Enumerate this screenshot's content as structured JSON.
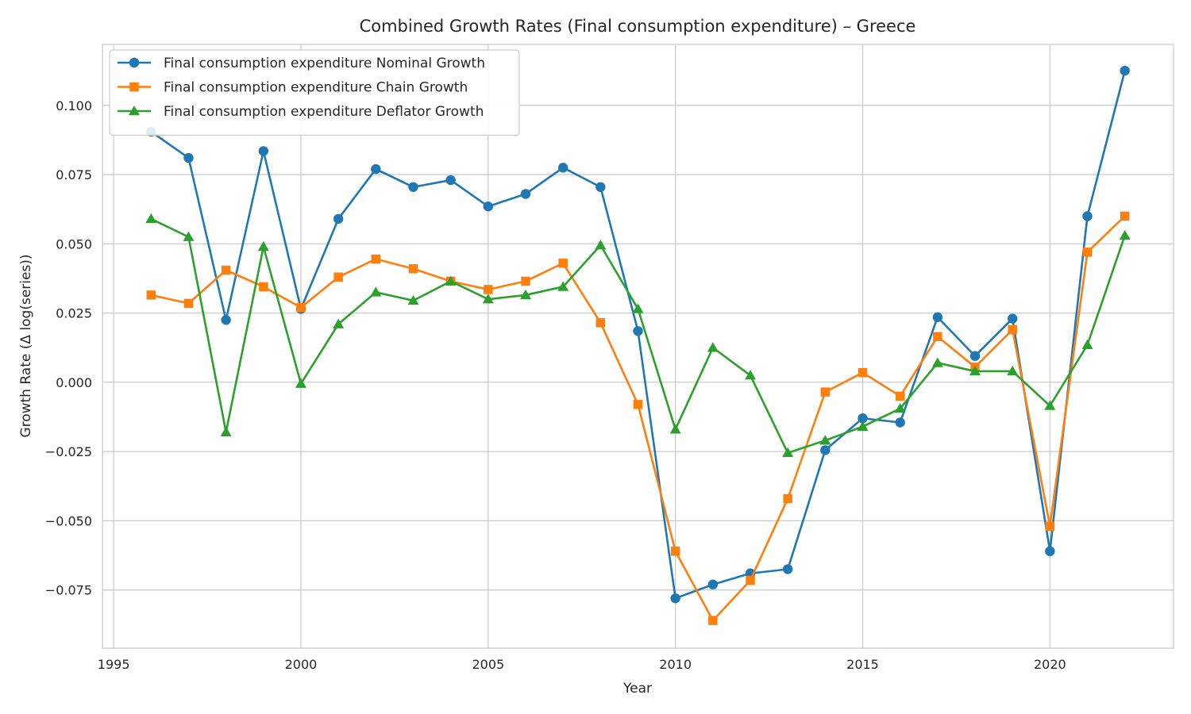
{
  "chart_data": {
    "type": "line",
    "title": "Combined Growth Rates (Final consumption expenditure) – Greece",
    "xlabel": "Year",
    "ylabel": "Growth Rate (Δ log(series))",
    "xlim": [
      1994.7,
      2023.3
    ],
    "ylim": [
      -0.096,
      0.122
    ],
    "x_ticks": [
      1995,
      2000,
      2005,
      2010,
      2015,
      2020
    ],
    "x_tick_labels": [
      "1995",
      "2000",
      "2005",
      "2010",
      "2015",
      "2020"
    ],
    "y_ticks": [
      -0.075,
      -0.05,
      -0.025,
      0.0,
      0.025,
      0.05,
      0.075,
      0.1
    ],
    "y_tick_labels": [
      "−0.075",
      "−0.050",
      "−0.025",
      "0.000",
      "0.025",
      "0.050",
      "0.075",
      "0.100"
    ],
    "grid": true,
    "legend_position": "top-left",
    "x": [
      1996,
      1997,
      1998,
      1999,
      2000,
      2001,
      2002,
      2003,
      2004,
      2005,
      2006,
      2007,
      2008,
      2009,
      2010,
      2011,
      2012,
      2013,
      2014,
      2015,
      2016,
      2017,
      2018,
      2019,
      2020,
      2021,
      2022
    ],
    "series": [
      {
        "name": "Final consumption expenditure Nominal Growth",
        "color": "#1f77b4",
        "marker": "circle",
        "values": [
          0.0905,
          0.081,
          0.0225,
          0.0835,
          0.0265,
          0.059,
          0.077,
          0.0705,
          0.073,
          0.0635,
          0.068,
          0.0775,
          0.0705,
          0.0185,
          -0.078,
          -0.073,
          -0.069,
          -0.0675,
          -0.0245,
          -0.013,
          -0.0145,
          0.0235,
          0.0095,
          0.023,
          -0.061,
          0.06,
          0.1125
        ]
      },
      {
        "name": "Final consumption expenditure Chain Growth",
        "color": "#ff7f0e",
        "marker": "square",
        "values": [
          0.0315,
          0.0285,
          0.0405,
          0.0345,
          0.027,
          0.038,
          0.0445,
          0.041,
          0.0365,
          0.0335,
          0.0365,
          0.043,
          0.0215,
          -0.008,
          -0.061,
          -0.086,
          -0.0715,
          -0.042,
          -0.0035,
          0.0035,
          -0.005,
          0.0165,
          0.0055,
          0.019,
          -0.052,
          0.047,
          0.06
        ]
      },
      {
        "name": "Final consumption expenditure Deflator Growth",
        "color": "#2ca02c",
        "marker": "triangle",
        "values": [
          0.059,
          0.0525,
          -0.018,
          0.049,
          -0.0005,
          0.021,
          0.0325,
          0.0295,
          0.0365,
          0.03,
          0.0315,
          0.0345,
          0.0495,
          0.0265,
          -0.017,
          0.0125,
          0.0025,
          -0.0255,
          -0.021,
          -0.016,
          -0.0095,
          0.007,
          0.004,
          0.004,
          -0.0085,
          0.0135,
          0.053
        ]
      }
    ]
  }
}
